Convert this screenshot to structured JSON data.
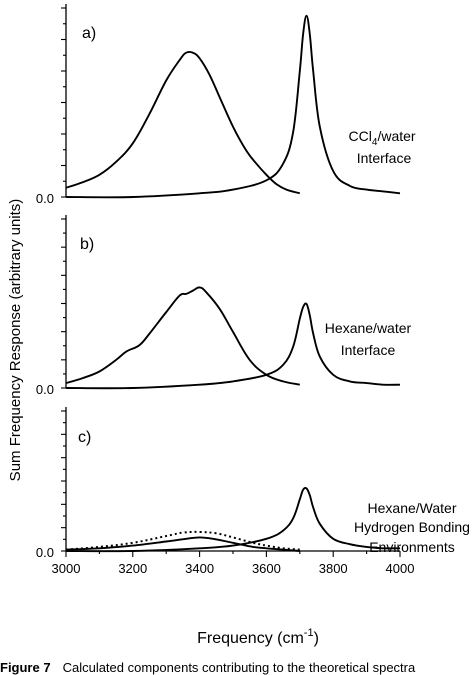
{
  "figure": {
    "ylabel": "Sum Frequency Response (arbitrary units)",
    "xlabel": "Frequency (cm",
    "xlabel_sup": "-1",
    "xlabel_end": ")",
    "caption_label": "Figure 7",
    "caption_text": "Calculated components contributing to the theoretical spectra"
  },
  "chart_data": [
    {
      "type": "line",
      "panel_label": "a)",
      "annotation_lines": [
        "CCl4/water",
        "Interface"
      ],
      "y_tick_label": "0.0",
      "ylim": [
        0,
        1.0
      ],
      "xlim": [
        3000,
        4000
      ],
      "grid": false,
      "series": [
        {
          "x": [
            3000,
            3050,
            3100,
            3150,
            3200,
            3250,
            3300,
            3340,
            3360,
            3380,
            3400,
            3430,
            3460,
            3500,
            3540,
            3570,
            3600,
            3630,
            3660,
            3700
          ],
          "values": [
            0.05,
            0.08,
            0.12,
            0.19,
            0.29,
            0.45,
            0.63,
            0.74,
            0.78,
            0.78,
            0.75,
            0.66,
            0.54,
            0.38,
            0.25,
            0.18,
            0.12,
            0.07,
            0.04,
            0.02
          ]
        },
        {
          "x": [
            3000,
            3200,
            3400,
            3500,
            3600,
            3650,
            3680,
            3700,
            3710,
            3720,
            3730,
            3740,
            3760,
            3800,
            3850,
            3900,
            3950,
            4000
          ],
          "values": [
            0.0,
            0.0,
            0.02,
            0.04,
            0.09,
            0.18,
            0.35,
            0.68,
            0.88,
            0.98,
            0.88,
            0.68,
            0.38,
            0.14,
            0.06,
            0.04,
            0.03,
            0.02
          ]
        }
      ]
    },
    {
      "type": "line",
      "panel_label": "b)",
      "annotation_lines": [
        "Hexane/water",
        "Interface"
      ],
      "y_tick_label": "0.0",
      "ylim": [
        0,
        1.0
      ],
      "xlim": [
        3000,
        4000
      ],
      "grid": false,
      "series": [
        {
          "x": [
            3000,
            3050,
            3100,
            3150,
            3180,
            3220,
            3250,
            3300,
            3340,
            3360,
            3380,
            3400,
            3420,
            3460,
            3500,
            3550,
            3600,
            3650,
            3700
          ],
          "values": [
            0.03,
            0.06,
            0.1,
            0.17,
            0.22,
            0.26,
            0.33,
            0.46,
            0.56,
            0.57,
            0.59,
            0.61,
            0.58,
            0.48,
            0.34,
            0.17,
            0.08,
            0.04,
            0.02
          ]
        },
        {
          "x": [
            3000,
            3200,
            3400,
            3500,
            3600,
            3650,
            3680,
            3700,
            3710,
            3720,
            3730,
            3740,
            3760,
            3800,
            3850,
            3900,
            3950,
            4000
          ],
          "values": [
            0.0,
            0.0,
            0.02,
            0.04,
            0.08,
            0.14,
            0.25,
            0.42,
            0.49,
            0.51,
            0.44,
            0.33,
            0.19,
            0.08,
            0.04,
            0.03,
            0.02,
            0.02
          ]
        }
      ]
    },
    {
      "type": "line",
      "panel_label": "c)",
      "annotation_lines": [
        "Hexane/Water",
        "Hydrogen Bonding",
        "Environments"
      ],
      "y_tick_label": "0.0",
      "ylim": [
        0,
        1.0
      ],
      "xlim": [
        3000,
        4000
      ],
      "grid": false,
      "series": [
        {
          "x": [
            3000,
            3100,
            3200,
            3300,
            3360,
            3400,
            3440,
            3500,
            3560,
            3600,
            3650,
            3700
          ],
          "values": [
            0.01,
            0.02,
            0.04,
            0.07,
            0.09,
            0.1,
            0.09,
            0.06,
            0.03,
            0.02,
            0.01,
            0.0
          ]
        },
        {
          "x": [
            3000,
            3100,
            3200,
            3300,
            3350,
            3400,
            3450,
            3500,
            3560,
            3600,
            3650,
            3700
          ],
          "values": [
            0.01,
            0.03,
            0.06,
            0.11,
            0.135,
            0.14,
            0.13,
            0.1,
            0.06,
            0.04,
            0.02,
            0.01
          ],
          "style": "dotted"
        },
        {
          "x": [
            3000,
            3200,
            3400,
            3500,
            3600,
            3650,
            3680,
            3700,
            3710,
            3720,
            3730,
            3740,
            3760,
            3800,
            3850,
            3900,
            3950,
            4000
          ],
          "values": [
            0.0,
            0.0,
            0.02,
            0.04,
            0.09,
            0.15,
            0.24,
            0.38,
            0.45,
            0.46,
            0.41,
            0.32,
            0.2,
            0.09,
            0.05,
            0.03,
            0.02,
            0.02
          ]
        }
      ],
      "x_ticks": [
        "3000",
        "3200",
        "3400",
        "3600",
        "3800",
        "4000"
      ]
    }
  ]
}
